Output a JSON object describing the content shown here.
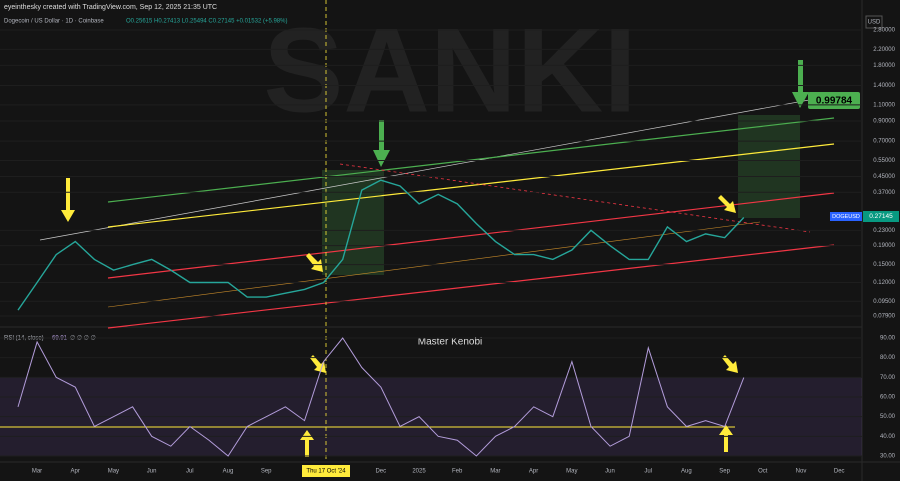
{
  "header": {
    "credit": "eyeinthesky created with TradingView.com, Sep 12, 2025 21:35 UTC",
    "symbol": "Dogecoin / US Dollar · 1D · Coinbase",
    "ohlc": "O0.25615 H0.27413 L0.25494 C0.27145 +0.01532 (+5.98%)"
  },
  "watermark": "SANKI",
  "price_axis": {
    "currency": "USD",
    "ticks": [
      {
        "value": 2.8,
        "label": "2.80000"
      },
      {
        "value": 2.2,
        "label": "2.20000"
      },
      {
        "value": 1.8,
        "label": "1.80000"
      },
      {
        "value": 1.4,
        "label": "1.40000"
      },
      {
        "value": 1.1,
        "label": "1.10000"
      },
      {
        "value": 0.9,
        "label": "0.90000"
      },
      {
        "value": 0.7,
        "label": "0.70000"
      },
      {
        "value": 0.55,
        "label": "0.55000"
      },
      {
        "value": 0.45,
        "label": "0.45000"
      },
      {
        "value": 0.37,
        "label": "0.37000"
      },
      {
        "value": 0.23,
        "label": "0.23000"
      },
      {
        "value": 0.19,
        "label": "0.19000"
      },
      {
        "value": 0.15,
        "label": "0.15000"
      },
      {
        "value": 0.12,
        "label": "0.12000"
      },
      {
        "value": 0.095,
        "label": "0.09500"
      },
      {
        "value": 0.079,
        "label": "0.07900"
      }
    ],
    "symbol_label": "DOGEUSD",
    "last_price": "0.27145",
    "target_label": "0.99784"
  },
  "price_series": {
    "values": [
      0.085,
      0.12,
      0.17,
      0.2,
      0.16,
      0.14,
      0.15,
      0.16,
      0.14,
      0.12,
      0.12,
      0.12,
      0.1,
      0.1,
      0.105,
      0.11,
      0.12,
      0.16,
      0.38,
      0.43,
      0.4,
      0.32,
      0.36,
      0.32,
      0.25,
      0.2,
      0.17,
      0.17,
      0.16,
      0.18,
      0.23,
      0.19,
      0.16,
      0.16,
      0.24,
      0.2,
      0.22,
      0.21,
      0.27
    ]
  },
  "rsi": {
    "legend": "RSI (14, close)",
    "value_text": "69.91",
    "na": "∅ ∅ ∅ ∅",
    "title": "Master Kenobi",
    "ticks": [
      {
        "value": 90,
        "label": "90.00"
      },
      {
        "value": 80,
        "label": "80.00"
      },
      {
        "value": 70,
        "label": "70.00"
      },
      {
        "value": 60,
        "label": "60.00"
      },
      {
        "value": 50,
        "label": "50.00"
      },
      {
        "value": 40,
        "label": "40.00"
      },
      {
        "value": 30,
        "label": "30.00"
      }
    ],
    "values": [
      55,
      88,
      70,
      65,
      45,
      50,
      55,
      40,
      35,
      45,
      38,
      30,
      45,
      50,
      55,
      48,
      78,
      90,
      75,
      65,
      45,
      50,
      40,
      38,
      30,
      40,
      45,
      55,
      50,
      78,
      45,
      35,
      40,
      85,
      55,
      45,
      48,
      45,
      69.91
    ]
  },
  "time_axis": {
    "labels": [
      "Mar",
      "Apr",
      "May",
      "Jun",
      "Jul",
      "Aug",
      "Sep",
      null,
      null,
      "Dec",
      "2025",
      "Feb",
      "Mar",
      "Apr",
      "May",
      "Jun",
      "Jul",
      "Aug",
      "Sep",
      "Oct",
      "Nov",
      "Dec"
    ],
    "cursor": "Thu 17 Oct '24"
  }
}
